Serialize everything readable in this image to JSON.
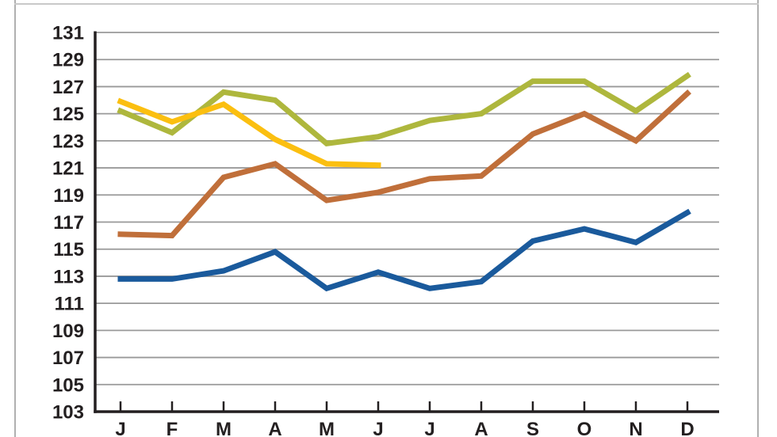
{
  "chart_data": {
    "type": "line",
    "title": "",
    "xlabel": "",
    "ylabel": "",
    "categories": [
      "J",
      "F",
      "M",
      "A",
      "M",
      "J",
      "J",
      "A",
      "S",
      "O",
      "N",
      "D"
    ],
    "y_ticks": [
      103,
      105,
      107,
      109,
      111,
      113,
      115,
      117,
      119,
      121,
      123,
      125,
      127,
      129,
      131
    ],
    "ylim": [
      103,
      131
    ],
    "grid": true,
    "legend": "none",
    "series": [
      {
        "name": "series-olive",
        "color": "#aeb73d",
        "values": [
          125.2,
          123.6,
          126.6,
          126.0,
          122.8,
          123.3,
          124.5,
          125.0,
          127.4,
          127.4,
          125.2,
          127.8
        ]
      },
      {
        "name": "series-yellow",
        "color": "#fbbf10",
        "values": [
          125.9,
          124.4,
          125.7,
          123.1,
          121.3,
          121.2,
          null,
          null,
          null,
          null,
          null,
          null
        ]
      },
      {
        "name": "series-orange",
        "color": "#c06f3a",
        "values": [
          116.1,
          116.0,
          120.3,
          121.3,
          118.6,
          119.2,
          120.2,
          120.4,
          123.5,
          125.0,
          123.0,
          126.5
        ]
      },
      {
        "name": "series-blue",
        "color": "#1a5a9c",
        "values": [
          112.8,
          112.8,
          113.4,
          114.8,
          112.1,
          113.3,
          112.1,
          112.6,
          115.6,
          116.5,
          115.5,
          117.7
        ]
      }
    ]
  },
  "colors": {
    "background": "#ffffff",
    "gridline": "#999999",
    "axis": "#231f20",
    "tick_label": "#231f20",
    "frame_border": "#b0b0b0"
  }
}
